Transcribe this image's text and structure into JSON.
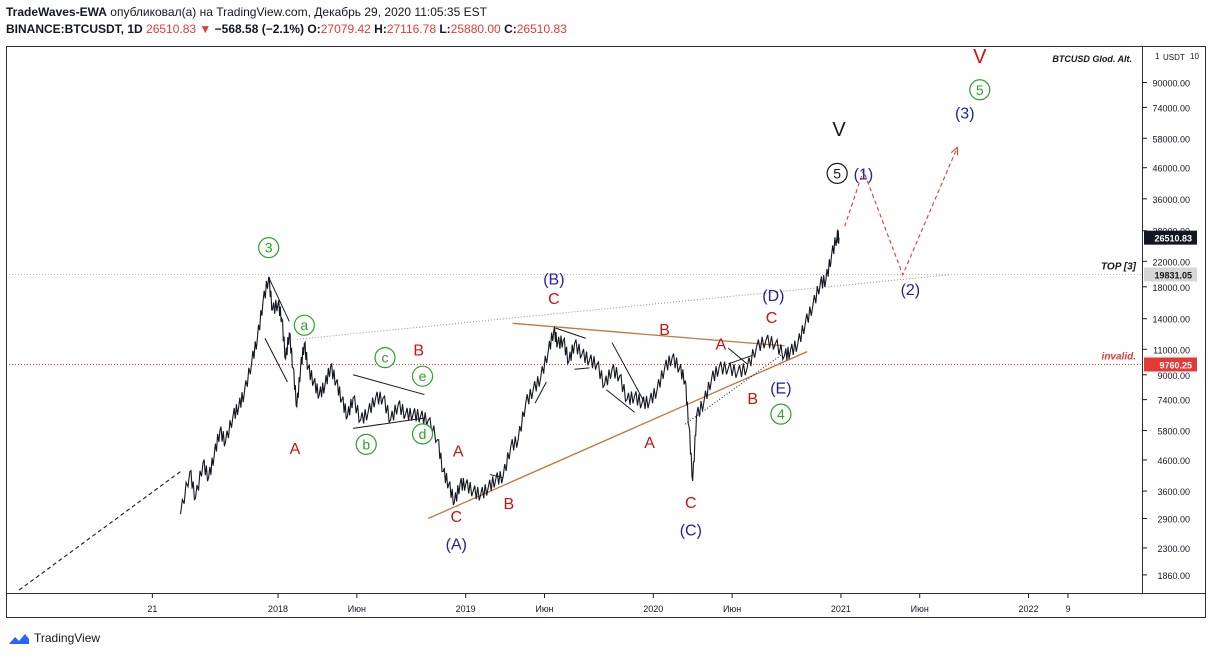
{
  "header": {
    "author": "TradeWaves-EWA",
    "published": "опубликовал(а) на TradingView.com, Декабрь 29, 2020 11:05:35 EST",
    "symbol": "BINANCE:BTCUSDT, 1D",
    "last": "26510.83",
    "change": "−568.58 (−2.1%)",
    "o_label": "O:",
    "o": "27079.42",
    "h_label": "H:",
    "h": "27116.78",
    "l_label": "L:",
    "l": "25880.00",
    "c_label": "C:",
    "c": "26510.83"
  },
  "brand": "TradingView",
  "chart_data": {
    "type": "line",
    "title": "BTCUSD Glod. Alt.",
    "currency": "USDT",
    "scale": "log",
    "scale_markers": [
      "1",
      "10"
    ],
    "ylim": [
      1600,
      120000
    ],
    "y_ticks": [
      1860,
      2300,
      2900,
      3600,
      4600,
      5800,
      7400,
      9000,
      11000,
      14000,
      18000,
      22000,
      28000,
      36000,
      46000,
      58000,
      74000,
      90000
    ],
    "y_tick_labels": [
      "1860.00",
      "2300.00",
      "2900.00",
      "3600.00",
      "4600.00",
      "5800.00",
      "7400.00",
      "9000.00",
      "11000.00",
      "14000.00",
      "18000.00",
      "22000.00",
      "28000.00",
      "36000.00",
      "46000.00",
      "58000.00",
      "74000.00",
      "90000.00"
    ],
    "x_ticks": [
      {
        "label": "21",
        "t": 2017.33
      },
      {
        "label": "2018",
        "t": 2018.0
      },
      {
        "label": "Июн",
        "t": 2018.42
      },
      {
        "label": "2019",
        "t": 2019.0
      },
      {
        "label": "Июн",
        "t": 2019.42
      },
      {
        "label": "2020",
        "t": 2020.0
      },
      {
        "label": "Июн",
        "t": 2020.42
      },
      {
        "label": "2021",
        "t": 2021.0
      },
      {
        "label": "Июн",
        "t": 2021.42
      },
      {
        "label": "2022",
        "t": 2022.0
      },
      {
        "label": "9",
        "t": 2022.21
      }
    ],
    "xlim": [
      2016.55,
      2022.61
    ],
    "series": [
      {
        "type": "price",
        "points": [
          [
            2017.48,
            3000
          ],
          [
            2017.53,
            4200
          ],
          [
            2017.56,
            3400
          ],
          [
            2017.6,
            4500
          ],
          [
            2017.63,
            4000
          ],
          [
            2017.66,
            4800
          ],
          [
            2017.69,
            5800
          ],
          [
            2017.72,
            5300
          ],
          [
            2017.76,
            6500
          ],
          [
            2017.79,
            7000
          ],
          [
            2017.82,
            7800
          ],
          [
            2017.86,
            10000
          ],
          [
            2017.89,
            12000
          ],
          [
            2017.92,
            16000
          ],
          [
            2017.95,
            19400
          ],
          [
            2017.97,
            15000
          ],
          [
            2018.0,
            15800
          ],
          [
            2018.02,
            14000
          ],
          [
            2018.04,
            10200
          ],
          [
            2018.06,
            12500
          ],
          [
            2018.08,
            9500
          ],
          [
            2018.1,
            7000
          ],
          [
            2018.12,
            9500
          ],
          [
            2018.14,
            11500
          ],
          [
            2018.16,
            9500
          ],
          [
            2018.19,
            8500
          ],
          [
            2018.22,
            7700
          ],
          [
            2018.25,
            8300
          ],
          [
            2018.28,
            9600
          ],
          [
            2018.31,
            8500
          ],
          [
            2018.34,
            7400
          ],
          [
            2018.37,
            6500
          ],
          [
            2018.4,
            7500
          ],
          [
            2018.44,
            6300
          ],
          [
            2018.48,
            6700
          ],
          [
            2018.52,
            7500
          ],
          [
            2018.56,
            7500
          ],
          [
            2018.6,
            6300
          ],
          [
            2018.64,
            7100
          ],
          [
            2018.68,
            6600
          ],
          [
            2018.72,
            6600
          ],
          [
            2018.76,
            6500
          ],
          [
            2018.8,
            6300
          ],
          [
            2018.85,
            5400
          ],
          [
            2018.88,
            4200
          ],
          [
            2018.91,
            3800
          ],
          [
            2018.94,
            3300
          ],
          [
            2018.97,
            3800
          ],
          [
            2019.0,
            3800
          ],
          [
            2019.04,
            3600
          ],
          [
            2019.08,
            3500
          ],
          [
            2019.12,
            3700
          ],
          [
            2019.16,
            3950
          ],
          [
            2019.2,
            4050
          ],
          [
            2019.24,
            5100
          ],
          [
            2019.28,
            5400
          ],
          [
            2019.32,
            7200
          ],
          [
            2019.36,
            8000
          ],
          [
            2019.4,
            8800
          ],
          [
            2019.44,
            10800
          ],
          [
            2019.47,
            12800
          ],
          [
            2019.49,
            11500
          ],
          [
            2019.52,
            11800
          ],
          [
            2019.55,
            10000
          ],
          [
            2019.58,
            11500
          ],
          [
            2019.62,
            10600
          ],
          [
            2019.66,
            10100
          ],
          [
            2019.7,
            9800
          ],
          [
            2019.74,
            8300
          ],
          [
            2019.78,
            9400
          ],
          [
            2019.82,
            8900
          ],
          [
            2019.86,
            7400
          ],
          [
            2019.9,
            7600
          ],
          [
            2019.94,
            7200
          ],
          [
            2019.98,
            7300
          ],
          [
            2020.02,
            8000
          ],
          [
            2020.06,
            9500
          ],
          [
            2020.1,
            10300
          ],
          [
            2020.14,
            9500
          ],
          [
            2020.17,
            8600
          ],
          [
            2020.19,
            6000
          ],
          [
            2020.21,
            3900
          ],
          [
            2020.23,
            6500
          ],
          [
            2020.27,
            7300
          ],
          [
            2020.31,
            8700
          ],
          [
            2020.35,
            9500
          ],
          [
            2020.4,
            9500
          ],
          [
            2020.45,
            9200
          ],
          [
            2020.5,
            9500
          ],
          [
            2020.55,
            11200
          ],
          [
            2020.6,
            11800
          ],
          [
            2020.65,
            11500
          ],
          [
            2020.7,
            10500
          ],
          [
            2020.73,
            10800
          ],
          [
            2020.77,
            11500
          ],
          [
            2020.81,
            13500
          ],
          [
            2020.85,
            15500
          ],
          [
            2020.89,
            18500
          ],
          [
            2020.92,
            19000
          ],
          [
            2020.95,
            23000
          ],
          [
            2020.98,
            27000
          ],
          [
            2020.99,
            26510
          ]
        ]
      },
      {
        "type": "wave-1-to-3",
        "points": [
          [
            2016.62,
            1650
          ],
          [
            2017.48,
            4200
          ]
        ]
      },
      {
        "type": "projection",
        "points": [
          [
            2021.02,
            29000
          ],
          [
            2021.12,
            45000
          ],
          [
            2021.33,
            19800
          ],
          [
            2021.62,
            54000
          ]
        ]
      }
    ],
    "trendlines": [
      {
        "type": "orange-lower",
        "points": [
          [
            2018.8,
            2900
          ],
          [
            2020.82,
            10800
          ]
        ]
      },
      {
        "type": "orange-upper",
        "points": [
          [
            2019.25,
            13500
          ],
          [
            2020.7,
            11300
          ]
        ]
      },
      {
        "type": "gray-dotted",
        "points": [
          [
            2018.1,
            11900
          ],
          [
            2021.58,
            19800
          ]
        ]
      },
      {
        "type": "black-dotted",
        "points": [
          [
            2020.17,
            6100
          ],
          [
            2020.68,
            10500
          ]
        ]
      },
      {
        "type": "triangle-a-e-top",
        "points": [
          [
            2018.4,
            9000
          ],
          [
            2018.78,
            7700
          ]
        ]
      },
      {
        "type": "triangle-a-e-bottom",
        "points": [
          [
            2018.4,
            5900
          ],
          [
            2018.78,
            6400
          ]
        ]
      },
      {
        "type": "impulse-short",
        "points": [
          [
            2017.93,
            12000
          ],
          [
            2018.05,
            8500
          ]
        ]
      },
      {
        "type": "impulse-short-2",
        "points": [
          [
            2017.95,
            19400
          ],
          [
            2018.06,
            13700
          ]
        ]
      },
      {
        "type": "impulse-b",
        "points": [
          [
            2019.48,
            13000
          ],
          [
            2019.64,
            12000
          ]
        ]
      },
      {
        "type": "impulse-b-2",
        "points": [
          [
            2019.58,
            9400
          ],
          [
            2019.66,
            9500
          ]
        ]
      },
      {
        "type": "impulse-c",
        "points": [
          [
            2019.78,
            11600
          ],
          [
            2019.95,
            7300
          ]
        ]
      },
      {
        "type": "impulse-c-2",
        "points": [
          [
            2019.75,
            8000
          ],
          [
            2019.9,
            6700
          ]
        ]
      },
      {
        "type": "impulse-e",
        "points": [
          [
            2020.4,
            11100
          ],
          [
            2020.5,
            9800
          ]
        ]
      },
      {
        "type": "impulse-e-2",
        "points": [
          [
            2020.4,
            9800
          ],
          [
            2020.53,
            10500
          ]
        ]
      },
      {
        "type": "small-flag",
        "points": [
          [
            2019.13,
            4100
          ],
          [
            2019.2,
            4000
          ]
        ]
      },
      {
        "type": "small-rise",
        "points": [
          [
            2019.37,
            7200
          ],
          [
            2019.43,
            8500
          ]
        ]
      }
    ],
    "levels": [
      {
        "name": "TOP [3]",
        "value": 19831.05,
        "label": "19831.05",
        "style": "dotted-gray"
      },
      {
        "name": "invalid.",
        "value": 9760.25,
        "label": "9760.25",
        "style": "dotted-red"
      },
      {
        "name": "last",
        "value": 26510.83,
        "label": "26510.83",
        "style": "last"
      }
    ],
    "annotations": [
      {
        "text": "3",
        "t": 2017.95,
        "y": 24500,
        "color": "#2e9e2e",
        "shape": "circle"
      },
      {
        "text": "a",
        "t": 2018.14,
        "y": 13300,
        "color": "#2e9e2e",
        "shape": "circle"
      },
      {
        "text": "b",
        "t": 2018.47,
        "y": 5200,
        "color": "#2e9e2e",
        "shape": "circle"
      },
      {
        "text": "c",
        "t": 2018.57,
        "y": 10300,
        "color": "#2e9e2e",
        "shape": "circle"
      },
      {
        "text": "d",
        "t": 2018.77,
        "y": 5650,
        "color": "#2e9e2e",
        "shape": "circle"
      },
      {
        "text": "e",
        "t": 2018.77,
        "y": 8900,
        "color": "#2e9e2e",
        "shape": "circle"
      },
      {
        "text": "A",
        "t": 2018.09,
        "y": 5050,
        "color": "#cc1111",
        "shape": "none"
      },
      {
        "text": "B",
        "t": 2018.75,
        "y": 11000,
        "color": "#cc1111",
        "shape": "none"
      },
      {
        "text": "A",
        "t": 2018.96,
        "y": 4950,
        "color": "#cc1111",
        "shape": "none"
      },
      {
        "text": "C",
        "t": 2018.95,
        "y": 2960,
        "color": "#cc1111",
        "shape": "none"
      },
      {
        "text": "(A)",
        "t": 2018.95,
        "y": 2380,
        "color": "#22229e",
        "shape": "none"
      },
      {
        "text": "B",
        "t": 2019.23,
        "y": 3280,
        "color": "#cc1111",
        "shape": "none"
      },
      {
        "text": "(B)",
        "t": 2019.47,
        "y": 19200,
        "color": "#22229e",
        "shape": "none"
      },
      {
        "text": "C",
        "t": 2019.47,
        "y": 16500,
        "color": "#cc1111",
        "shape": "none"
      },
      {
        "text": "B",
        "t": 2020.06,
        "y": 12900,
        "color": "#cc1111",
        "shape": "none"
      },
      {
        "text": "A",
        "t": 2019.98,
        "y": 5300,
        "color": "#cc1111",
        "shape": "none"
      },
      {
        "text": "C",
        "t": 2020.2,
        "y": 3300,
        "color": "#cc1111",
        "shape": "none"
      },
      {
        "text": "(C)",
        "t": 2020.2,
        "y": 2660,
        "color": "#22229e",
        "shape": "none"
      },
      {
        "text": "A",
        "t": 2020.36,
        "y": 11500,
        "color": "#cc1111",
        "shape": "none"
      },
      {
        "text": "B",
        "t": 2020.53,
        "y": 7500,
        "color": "#cc1111",
        "shape": "none"
      },
      {
        "text": "(D)",
        "t": 2020.64,
        "y": 16900,
        "color": "#22229e",
        "shape": "none"
      },
      {
        "text": "C",
        "t": 2020.63,
        "y": 14200,
        "color": "#cc1111",
        "shape": "none"
      },
      {
        "text": "(E)",
        "t": 2020.68,
        "y": 8150,
        "color": "#22229e",
        "shape": "none"
      },
      {
        "text": "4",
        "t": 2020.68,
        "y": 6600,
        "color": "#2e9e2e",
        "shape": "circle"
      },
      {
        "text": "V",
        "t": 2020.99,
        "y": 62000,
        "color": "#131722",
        "shape": "none"
      },
      {
        "text": "5",
        "t": 2020.98,
        "y": 44000,
        "color": "#131722",
        "shape": "circle"
      },
      {
        "text": "(1)",
        "t": 2021.12,
        "y": 44000,
        "color": "#22229e",
        "shape": "none"
      },
      {
        "text": "(2)",
        "t": 2021.37,
        "y": 17700,
        "color": "#22229e",
        "shape": "none"
      },
      {
        "text": "(3)",
        "t": 2021.66,
        "y": 71000,
        "color": "#22229e",
        "shape": "none"
      },
      {
        "text": "5",
        "t": 2021.74,
        "y": 85000,
        "color": "#2e9e2e",
        "shape": "circle"
      },
      {
        "text": "V",
        "t": 2021.74,
        "y": 110000,
        "color": "#cc1111",
        "shape": "none"
      }
    ],
    "colors": {
      "price": "#131722",
      "orange": "#c8743a",
      "gray": "#8e8e8e",
      "red": "#e53935",
      "green": "#2e9e2e",
      "blue": "#22229e",
      "black": "#131722"
    }
  }
}
